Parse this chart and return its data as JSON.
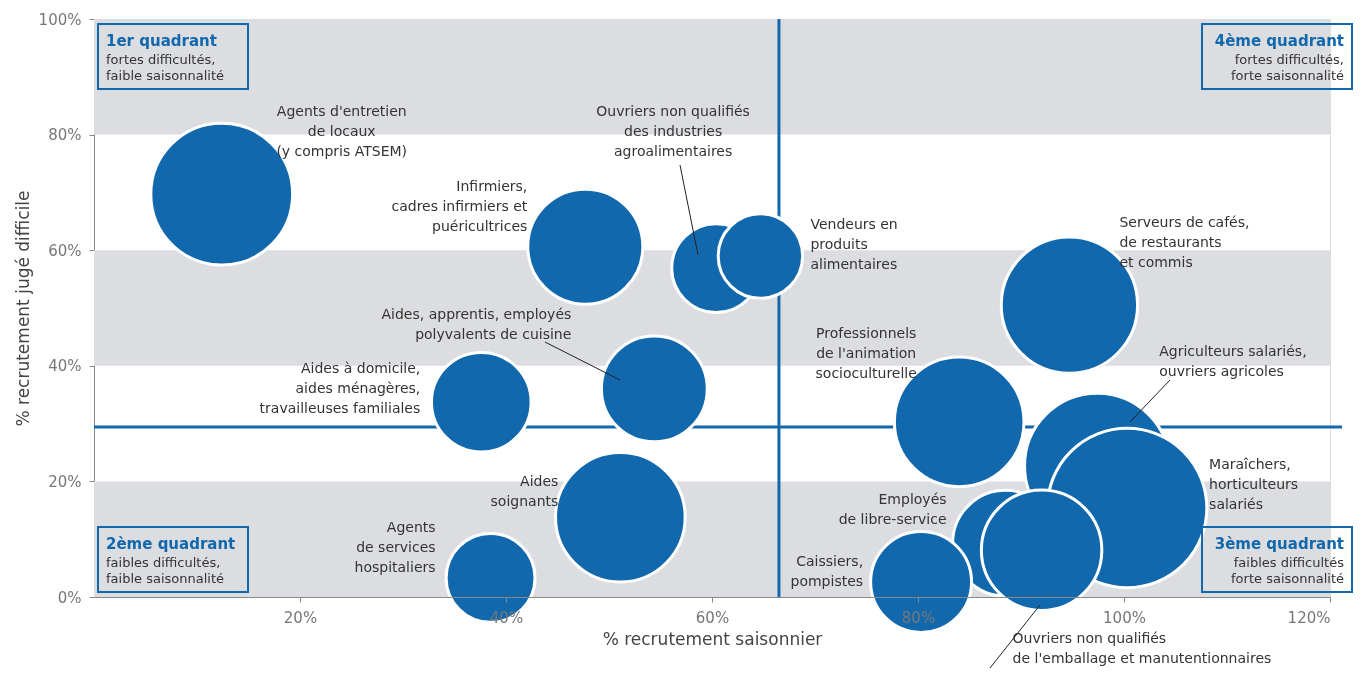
{
  "chart_data": {
    "type": "bubble",
    "xlabel": "% recrutement saisonnier",
    "ylabel": "% recrutement jugé difficile",
    "xlim": [
      0,
      120
    ],
    "ylim": [
      0,
      100
    ],
    "xticks": [
      {
        "value": 20,
        "label": "20%"
      },
      {
        "value": 40,
        "label": "40%"
      },
      {
        "value": 60,
        "label": "60%"
      },
      {
        "value": 80,
        "label": "80%"
      },
      {
        "value": 100,
        "label": "100%"
      },
      {
        "value": 120,
        "label": "120%"
      }
    ],
    "yticks": [
      {
        "value": 0,
        "label": "0%"
      },
      {
        "value": 20,
        "label": "20%"
      },
      {
        "value": 40,
        "label": "40%"
      },
      {
        "value": 60,
        "label": "60%"
      },
      {
        "value": 80,
        "label": "80%"
      },
      {
        "value": 100,
        "label": "100%"
      }
    ],
    "series": [
      {
        "name": "Agents d'entretien\nde locaux\n(y compris ATSEM)",
        "color": "#1268ad",
        "x": [
          12.4
        ],
        "values": [
          69.7
        ],
        "sizes": [
          0.79
        ]
      },
      {
        "name": "Infirmiers,\ncadres infirmiers et\npuéricultrices",
        "color": "#1268ad",
        "x": [
          47.7
        ],
        "values": [
          60.6
        ],
        "sizes": [
          0.52
        ]
      },
      {
        "name": "Ouvriers non qualifiés\ndes industries\nagroalimentaires",
        "color": "#1268ad",
        "x": [
          60.4
        ],
        "values": [
          56.9
        ],
        "sizes": [
          0.31
        ]
      },
      {
        "name": "Vendeurs en\nproduits\nalimentaires",
        "color": "#1268ad",
        "x": [
          64.7
        ],
        "values": [
          59.0
        ],
        "sizes": [
          0.28
        ]
      },
      {
        "name": "Serveurs de cafés,\nde restaurants\net commis",
        "color": "#1268ad",
        "x": [
          94.7
        ],
        "values": [
          50.5
        ],
        "sizes": [
          0.73
        ]
      },
      {
        "name": "Aides à domicile,\naides ménagères,\ntravailleuses familiales",
        "color": "#1268ad",
        "x": [
          37.6
        ],
        "values": [
          33.7
        ],
        "sizes": [
          0.39
        ]
      },
      {
        "name": "Aides, apprentis, employés\npolyvalents de cuisine",
        "color": "#1268ad",
        "x": [
          54.4
        ],
        "values": [
          36.0
        ],
        "sizes": [
          0.44
        ]
      },
      {
        "name": "Professionnels\nde l'animation\nsocioculturelle",
        "color": "#1268ad",
        "x": [
          84.0
        ],
        "values": [
          30.3
        ],
        "sizes": [
          0.66
        ]
      },
      {
        "name": "Agriculteurs salariés,\nouvriers agricoles",
        "color": "#1268ad",
        "x": [
          97.4
        ],
        "values": [
          22.7
        ],
        "sizes": [
          0.83
        ]
      },
      {
        "name": "Maraîchers,\nhorticulteurs\nsalariés",
        "color": "#1268ad",
        "x": [
          100.3
        ],
        "values": [
          15.4
        ],
        "sizes": [
          1
        ]
      },
      {
        "name": "Aides\nsoignants",
        "color": "#1268ad",
        "x": [
          51.1
        ],
        "values": [
          13.8
        ],
        "sizes": [
          0.66
        ]
      },
      {
        "name": "Agents\nde services\nhospitaliers",
        "color": "#1268ad",
        "x": [
          38.5
        ],
        "values": [
          3.3
        ],
        "sizes": [
          0.31
        ]
      },
      {
        "name": "Employés\nde libre-service",
        "color": "#1268ad",
        "x": [
          88.5
        ],
        "values": [
          9.3
        ],
        "sizes": [
          0.44
        ]
      },
      {
        "name": "Ouvriers non qualifiés\nde l'emballage et manutentionnaires",
        "color": "#1268ad",
        "x": [
          92.0
        ],
        "values": [
          8.1
        ],
        "sizes": [
          0.57
        ]
      },
      {
        "name": "Caissiers,\npompistes",
        "color": "#1268ad",
        "x": [
          80.3
        ],
        "values": [
          2.6
        ],
        "sizes": [
          0.4
        ]
      }
    ],
    "ref_lines": [
      {
        "axis": "x",
        "value": 66.5,
        "color": "#1268ad"
      },
      {
        "axis": "y",
        "value": 29.4,
        "color": "#1268ad"
      }
    ],
    "bands": [
      {
        "axis": "y",
        "from": 0,
        "to": 20,
        "color": "#dcdde0"
      },
      {
        "axis": "y",
        "from": 40,
        "to": 60,
        "color": "#dcdde0"
      },
      {
        "axis": "y",
        "from": 80,
        "to": 100,
        "color": "#dcdde0"
      }
    ],
    "annotations": [
      "1er quadrant\nfortes difficultés,\nfaible saisonnalité",
      "4ème quadrant\nfortes difficultés,\nforte saisonnalité",
      "2ème quadrant\nfaibles difficultés,\nfaible saisonnalité",
      "3ème quadrant\nfaibles difficultés\nforte saisonnalité"
    ]
  }
}
